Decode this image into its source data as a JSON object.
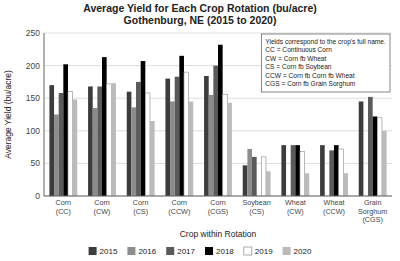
{
  "chart_data": {
    "type": "bar",
    "title": "Average Yield for Each Crop Rotation (bu/acre)\nGothenburg, NE (2015 to 2020)",
    "x_label": "Crop within Rotation",
    "y_label": "Average Yield (bu/acre)",
    "categories": [
      "Corn\n(CC)",
      "Corn\n(CW)",
      "Corn\n(CS)",
      "Corn\n(CCW)",
      "Corn\n(CGS)",
      "Soybean\n(CS)",
      "Wheat\n(CW)",
      "Wheat\n(CCW)",
      "Grain\nSorghum\n(CGS)"
    ],
    "series": [
      {
        "name": "2015",
        "color": "#3c3c3c",
        "values": [
          170,
          168,
          160,
          180,
          184,
          47,
          78,
          78,
          145
        ]
      },
      {
        "name": "2016",
        "color": "#8c8c8c",
        "values": [
          125,
          135,
          136,
          145,
          155,
          72,
          0,
          0,
          0
        ]
      },
      {
        "name": "2017",
        "color": "#5a5a5a",
        "values": [
          158,
          168,
          175,
          183,
          200,
          60,
          78,
          70,
          152
        ]
      },
      {
        "name": "2018",
        "color": "#000000",
        "values": [
          202,
          213,
          207,
          215,
          232,
          0,
          78,
          78,
          122
        ]
      },
      {
        "name": "2019",
        "color": "#ffffff",
        "values": [
          160,
          172,
          158,
          190,
          156,
          60,
          68,
          72,
          120
        ]
      },
      {
        "name": "2020",
        "color": "#bbbbbb",
        "values": [
          148,
          173,
          115,
          145,
          143,
          38,
          35,
          35,
          100
        ]
      }
    ],
    "annotations": [
      "Yields correspond to the crop's full name.\nCC = Continuous Corn\nCW = Corn fb Wheat\nCS = Corn fb Soybean\nCCW = Corn fb Corn fb Wheat\nCGS = Corn fb Grain Sorghum"
    ],
    "ylim": [
      0,
      250
    ],
    "yticks": [
      0,
      50,
      100,
      150,
      200,
      250
    ],
    "grid": true,
    "legend": "bottom"
  }
}
